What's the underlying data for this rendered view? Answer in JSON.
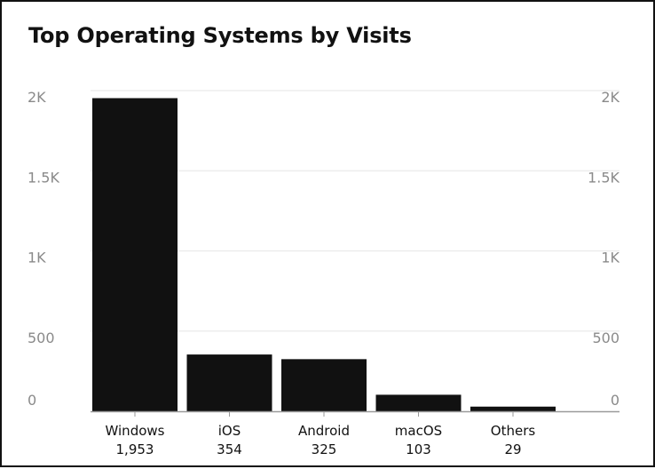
{
  "chart_data": {
    "type": "bar",
    "title": "Top Operating Systems by Visits",
    "categories": [
      "Windows",
      "iOS",
      "Android",
      "macOS",
      "Others"
    ],
    "values": [
      1953,
      354,
      325,
      103,
      29
    ],
    "value_labels": [
      "1,953",
      "354",
      "325",
      "103",
      "29"
    ],
    "y_ticks": [
      {
        "value": 0,
        "label": "0"
      },
      {
        "value": 500,
        "label": "500"
      },
      {
        "value": 1000,
        "label": "1K"
      },
      {
        "value": 1500,
        "label": "1.5K"
      },
      {
        "value": 2000,
        "label": "2K"
      }
    ],
    "ylim": [
      0,
      2000
    ],
    "xlabel": "",
    "ylabel": "",
    "grid": true,
    "colors": {
      "bar": "#111111",
      "grid": "#e6e6e6",
      "axis": "#9a9a9a",
      "tick_text": "#8a8a8a",
      "label_text": "#111111"
    }
  }
}
